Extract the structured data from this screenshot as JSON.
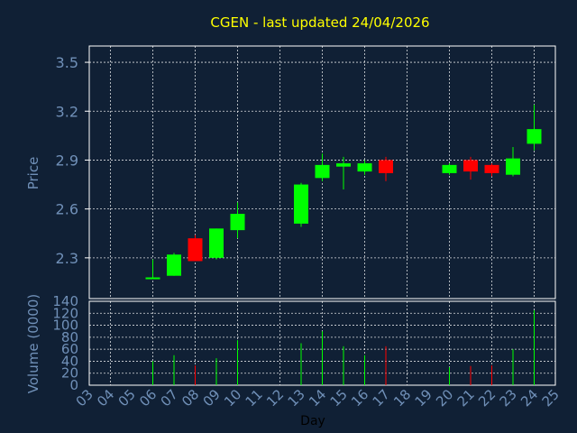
{
  "chart_data": {
    "type": "candlestick",
    "title": "CGEN - last updated 24/04/2026",
    "xlabel": "Day",
    "price_panel": {
      "ylabel": "Price",
      "yticks": [
        2.3,
        2.6,
        2.9,
        3.2,
        3.5
      ],
      "ylim": [
        2.05,
        3.6
      ],
      "grid": true
    },
    "volume_panel": {
      "ylabel": "Volume (0000)",
      "yticks": [
        0,
        20,
        40,
        60,
        80,
        100,
        120,
        140
      ],
      "ylim": [
        0,
        140
      ],
      "grid": true
    },
    "x_ticks": [
      "03",
      "04",
      "05",
      "06",
      "07",
      "08",
      "09",
      "10",
      "11",
      "12",
      "13",
      "14",
      "15",
      "16",
      "17",
      "18",
      "19",
      "20",
      "21",
      "22",
      "23",
      "24",
      "25"
    ],
    "candles": [
      {
        "day": 6,
        "open": 2.18,
        "high": 2.29,
        "low": 2.17,
        "close": 2.18,
        "volume": 40
      },
      {
        "day": 7,
        "open": 2.19,
        "high": 2.33,
        "low": 2.19,
        "close": 2.32,
        "volume": 50
      },
      {
        "day": 8,
        "open": 2.42,
        "high": 2.44,
        "low": 2.28,
        "close": 2.28,
        "volume": 33
      },
      {
        "day": 9,
        "open": 2.3,
        "high": 2.48,
        "low": 2.29,
        "close": 2.48,
        "volume": 45
      },
      {
        "day": 10,
        "open": 2.47,
        "high": 2.64,
        "low": 2.42,
        "close": 2.57,
        "volume": 75
      },
      {
        "day": 13,
        "open": 2.51,
        "high": 2.76,
        "low": 2.49,
        "close": 2.75,
        "volume": 70
      },
      {
        "day": 14,
        "open": 2.79,
        "high": 2.94,
        "low": 2.77,
        "close": 2.87,
        "volume": 90
      },
      {
        "day": 15,
        "open": 2.86,
        "high": 2.92,
        "low": 2.72,
        "close": 2.88,
        "volume": 65
      },
      {
        "day": 16,
        "open": 2.83,
        "high": 2.9,
        "low": 2.81,
        "close": 2.88,
        "volume": 50
      },
      {
        "day": 17,
        "open": 2.9,
        "high": 2.92,
        "low": 2.77,
        "close": 2.82,
        "volume": 65
      },
      {
        "day": 20,
        "open": 2.82,
        "high": 2.88,
        "low": 2.81,
        "close": 2.87,
        "volume": 30
      },
      {
        "day": 21,
        "open": 2.9,
        "high": 2.92,
        "low": 2.78,
        "close": 2.83,
        "volume": 32
      },
      {
        "day": 22,
        "open": 2.87,
        "high": 2.88,
        "low": 2.8,
        "close": 2.82,
        "volume": 33
      },
      {
        "day": 23,
        "open": 2.81,
        "high": 2.98,
        "low": 2.8,
        "close": 2.91,
        "volume": 60
      },
      {
        "day": 24,
        "open": 3.0,
        "high": 3.24,
        "low": 2.96,
        "close": 3.09,
        "volume": 125
      }
    ],
    "colors": {
      "background": "#102035",
      "plot_border": "#ffffff",
      "grid": "#ffffff",
      "up": "#00ff00",
      "down": "#ff0000",
      "title": "#ffff00",
      "text": "#7090b8"
    }
  }
}
